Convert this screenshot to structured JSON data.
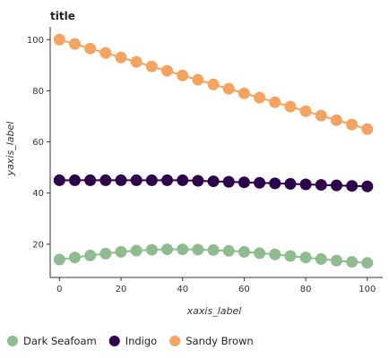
{
  "chart_data": {
    "type": "line",
    "title": "title",
    "xlabel": "xaxis_label",
    "ylabel": "yaxis_label",
    "xlim": [
      -3,
      105
    ],
    "ylim": [
      7,
      105
    ],
    "x_ticks": [
      0,
      20,
      40,
      60,
      80,
      100
    ],
    "y_ticks": [
      20,
      40,
      60,
      80,
      100
    ],
    "grid": false,
    "legend_position": "bottom",
    "x": [
      0,
      5,
      10,
      15,
      20,
      25,
      30,
      35,
      40,
      45,
      50,
      55,
      60,
      65,
      70,
      75,
      80,
      85,
      90,
      95,
      100
    ],
    "series": [
      {
        "name": "Dark Seafoam",
        "color": "#8fbc8f",
        "values": [
          14.0,
          14.8,
          15.6,
          16.3,
          17.0,
          17.5,
          17.8,
          18.0,
          18.0,
          17.9,
          17.7,
          17.4,
          17.0,
          16.5,
          16.0,
          15.4,
          14.8,
          14.2,
          13.6,
          13.1,
          12.7
        ]
      },
      {
        "name": "Indigo",
        "color": "#2d004b",
        "values": [
          45.0,
          45.0,
          45.0,
          45.0,
          45.0,
          45.0,
          45.0,
          45.0,
          45.0,
          44.8,
          44.6,
          44.4,
          44.2,
          44.0,
          43.8,
          43.6,
          43.4,
          43.2,
          43.0,
          42.8,
          42.6
        ]
      },
      {
        "name": "Sandy Brown",
        "color": "#f4a460",
        "values": [
          100.0,
          98.3,
          96.5,
          94.8,
          93.0,
          91.3,
          89.5,
          87.8,
          86.0,
          84.3,
          82.5,
          80.8,
          79.0,
          77.3,
          75.5,
          73.8,
          72.0,
          70.3,
          68.5,
          66.8,
          65.0
        ]
      }
    ]
  }
}
